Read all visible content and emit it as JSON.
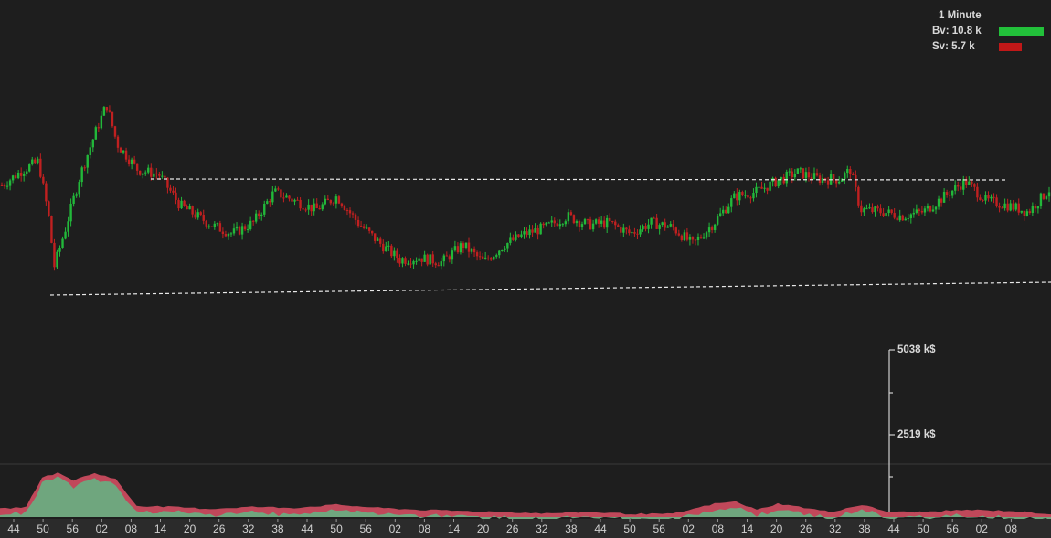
{
  "legend": {
    "interval": "1 Minute",
    "buy_volume": "Bv: 10.8 k",
    "sell_volume": "Sv: 5.7 k",
    "buy_color": "#22c03a",
    "sell_color": "#c01818"
  },
  "volume_axis": {
    "top_label": "5038 k$",
    "mid_label": "2519 k$"
  },
  "colors": {
    "background": "#1e1e1e",
    "up_candle": "#22b83a",
    "down_candle": "#c02020",
    "volume_area": "#6fa67e",
    "volume_sell": "#c0485a",
    "guide_line": "#e8e8e8"
  },
  "chart_data": {
    "type": "candlestick",
    "interval": "1 Minute",
    "x_tick_labels": [
      "44",
      "50",
      "56",
      "02",
      "08",
      "14",
      "20",
      "26",
      "32",
      "38",
      "44",
      "50",
      "56",
      "02",
      "08",
      "14",
      "20",
      "26",
      "32",
      "38",
      "44",
      "50",
      "56",
      "02",
      "08",
      "14",
      "20",
      "26",
      "32",
      "38",
      "44",
      "50",
      "56",
      "02",
      "08"
    ],
    "price_path": [
      {
        "t": 0.0,
        "v": 0.55
      },
      {
        "t": 0.02,
        "v": 0.62
      },
      {
        "t": 0.035,
        "v": 0.66
      },
      {
        "t": 0.045,
        "v": 0.4
      },
      {
        "t": 0.05,
        "v": 0.18
      },
      {
        "t": 0.06,
        "v": 0.34
      },
      {
        "t": 0.075,
        "v": 0.6
      },
      {
        "t": 0.09,
        "v": 0.8
      },
      {
        "t": 0.1,
        "v": 0.92
      },
      {
        "t": 0.11,
        "v": 0.74
      },
      {
        "t": 0.13,
        "v": 0.62
      },
      {
        "t": 0.15,
        "v": 0.6
      },
      {
        "t": 0.17,
        "v": 0.46
      },
      {
        "t": 0.2,
        "v": 0.37
      },
      {
        "t": 0.22,
        "v": 0.33
      },
      {
        "t": 0.24,
        "v": 0.38
      },
      {
        "t": 0.26,
        "v": 0.52
      },
      {
        "t": 0.28,
        "v": 0.48
      },
      {
        "t": 0.3,
        "v": 0.44
      },
      {
        "t": 0.32,
        "v": 0.5
      },
      {
        "t": 0.34,
        "v": 0.38
      },
      {
        "t": 0.36,
        "v": 0.29
      },
      {
        "t": 0.38,
        "v": 0.21
      },
      {
        "t": 0.4,
        "v": 0.22
      },
      {
        "t": 0.42,
        "v": 0.2
      },
      {
        "t": 0.44,
        "v": 0.28
      },
      {
        "t": 0.46,
        "v": 0.2
      },
      {
        "t": 0.48,
        "v": 0.28
      },
      {
        "t": 0.5,
        "v": 0.33
      },
      {
        "t": 0.52,
        "v": 0.36
      },
      {
        "t": 0.54,
        "v": 0.41
      },
      {
        "t": 0.56,
        "v": 0.37
      },
      {
        "t": 0.58,
        "v": 0.38
      },
      {
        "t": 0.6,
        "v": 0.33
      },
      {
        "t": 0.62,
        "v": 0.38
      },
      {
        "t": 0.64,
        "v": 0.36
      },
      {
        "t": 0.66,
        "v": 0.28
      },
      {
        "t": 0.68,
        "v": 0.38
      },
      {
        "t": 0.7,
        "v": 0.5
      },
      {
        "t": 0.72,
        "v": 0.52
      },
      {
        "t": 0.74,
        "v": 0.57
      },
      {
        "t": 0.76,
        "v": 0.61
      },
      {
        "t": 0.78,
        "v": 0.58
      },
      {
        "t": 0.8,
        "v": 0.58
      },
      {
        "t": 0.81,
        "v": 0.62
      },
      {
        "t": 0.82,
        "v": 0.44
      },
      {
        "t": 0.84,
        "v": 0.43
      },
      {
        "t": 0.86,
        "v": 0.41
      },
      {
        "t": 0.88,
        "v": 0.43
      },
      {
        "t": 0.9,
        "v": 0.5
      },
      {
        "t": 0.92,
        "v": 0.57
      },
      {
        "t": 0.94,
        "v": 0.48
      },
      {
        "t": 0.96,
        "v": 0.46
      },
      {
        "t": 0.98,
        "v": 0.43
      },
      {
        "t": 1.0,
        "v": 0.53
      }
    ],
    "volume_path": [
      {
        "t": 0.0,
        "v": 0.16
      },
      {
        "t": 0.025,
        "v": 0.2
      },
      {
        "t": 0.04,
        "v": 0.78
      },
      {
        "t": 0.055,
        "v": 0.86
      },
      {
        "t": 0.07,
        "v": 0.72
      },
      {
        "t": 0.09,
        "v": 0.86
      },
      {
        "t": 0.11,
        "v": 0.74
      },
      {
        "t": 0.13,
        "v": 0.22
      },
      {
        "t": 0.16,
        "v": 0.2
      },
      {
        "t": 0.2,
        "v": 0.16
      },
      {
        "t": 0.24,
        "v": 0.2
      },
      {
        "t": 0.28,
        "v": 0.18
      },
      {
        "t": 0.32,
        "v": 0.24
      },
      {
        "t": 0.36,
        "v": 0.18
      },
      {
        "t": 0.4,
        "v": 0.14
      },
      {
        "t": 0.44,
        "v": 0.12
      },
      {
        "t": 0.48,
        "v": 0.1
      },
      {
        "t": 0.52,
        "v": 0.07
      },
      {
        "t": 0.56,
        "v": 0.1
      },
      {
        "t": 0.6,
        "v": 0.06
      },
      {
        "t": 0.64,
        "v": 0.06
      },
      {
        "t": 0.68,
        "v": 0.26
      },
      {
        "t": 0.7,
        "v": 0.3
      },
      {
        "t": 0.72,
        "v": 0.14
      },
      {
        "t": 0.74,
        "v": 0.26
      },
      {
        "t": 0.76,
        "v": 0.2
      },
      {
        "t": 0.79,
        "v": 0.1
      },
      {
        "t": 0.82,
        "v": 0.24
      },
      {
        "t": 0.845,
        "v": 0.1
      },
      {
        "t": 0.88,
        "v": 0.1
      },
      {
        "t": 0.92,
        "v": 0.14
      },
      {
        "t": 0.96,
        "v": 0.12
      },
      {
        "t": 1.0,
        "v": 0.06
      }
    ],
    "volume_ylim": [
      0,
      5038
    ]
  }
}
